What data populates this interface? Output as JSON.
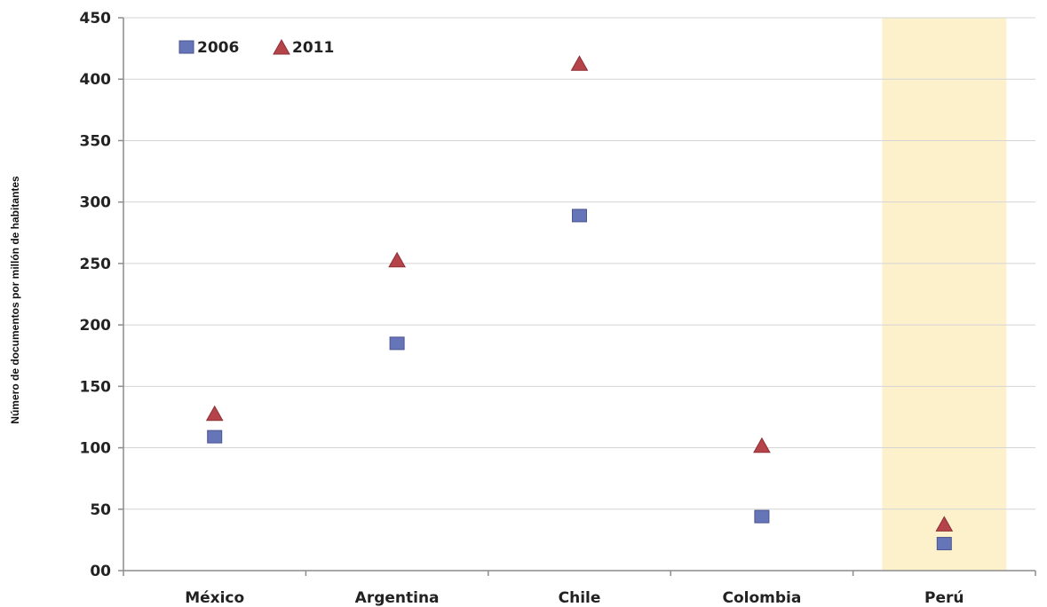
{
  "chart_data": {
    "type": "scatter",
    "categories": [
      "México",
      "Argentina",
      "Chile",
      "Colombia",
      "Perú"
    ],
    "series": [
      {
        "name": "2006",
        "values": [
          109,
          185,
          289,
          44,
          22
        ],
        "color": "#6674b8",
        "marker": "square"
      },
      {
        "name": "2011",
        "values": [
          128,
          253,
          413,
          102,
          38
        ],
        "color": "#b5444a",
        "marker": "triangle"
      }
    ],
    "xlabel": "",
    "ylabel": "Número de documentos por millón de habitantes",
    "ylim": [
      0,
      450
    ],
    "yticks": [
      0,
      50,
      100,
      150,
      200,
      250,
      300,
      350,
      400,
      450
    ],
    "ytick_labels": [
      "00",
      "50",
      "100",
      "150",
      "200",
      "250",
      "300",
      "350",
      "400",
      "450"
    ],
    "grid": true,
    "legend_position": "top-left",
    "highlighted_category": "Perú",
    "highlight_color": "#fdf1cc"
  }
}
